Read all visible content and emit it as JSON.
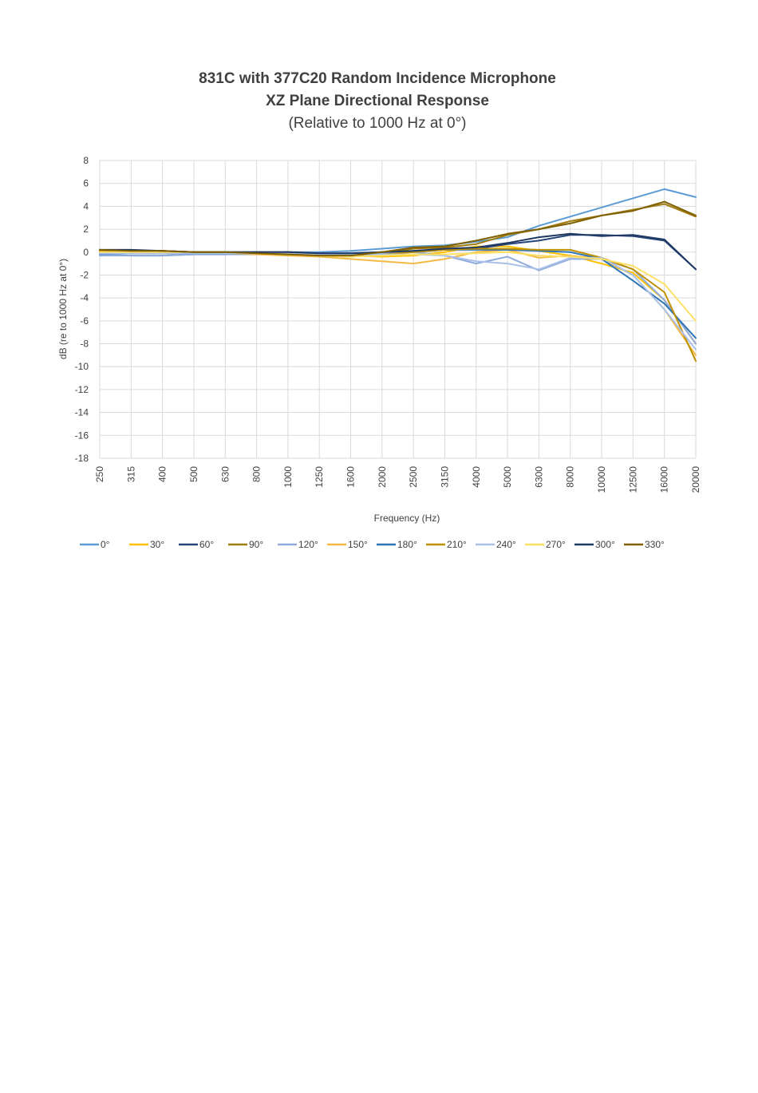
{
  "chart_data": {
    "type": "line",
    "title": "831C with 377C20 Random Incidence Microphone",
    "subtitle": "XZ Plane Directional Response",
    "subtitle2": "(Relative to 1000 Hz at 0°)",
    "xlabel": "Frequency (Hz)",
    "ylabel": "dB (re to 1000 Hz at 0°)",
    "x_scale": "log (third-octave categories)",
    "categories": [
      "250",
      "315",
      "400",
      "500",
      "630",
      "800",
      "1000",
      "1250",
      "1600",
      "2000",
      "2500",
      "3150",
      "4000",
      "5000",
      "6300",
      "8000",
      "10000",
      "12500",
      "16000",
      "20000"
    ],
    "ylim": [
      -18,
      8
    ],
    "yticks": [
      8,
      6,
      4,
      2,
      0,
      -2,
      -4,
      -6,
      -8,
      -10,
      -12,
      -14,
      -16,
      -18
    ],
    "grid": true,
    "legend_position": "bottom",
    "series": [
      {
        "name": "0°",
        "color": "#5b9bd5",
        "values": [
          -0.2,
          -0.3,
          -0.3,
          -0.2,
          -0.2,
          -0.1,
          0.0,
          0.0,
          0.1,
          0.3,
          0.5,
          0.6,
          0.9,
          1.3,
          2.3,
          3.1,
          3.9,
          4.7,
          5.5,
          4.8
        ]
      },
      {
        "name": "30°",
        "color": "#ffc000",
        "values": [
          0.0,
          -0.1,
          -0.1,
          -0.1,
          -0.1,
          -0.1,
          0.0,
          -0.1,
          -0.3,
          -0.4,
          -0.3,
          0.0,
          0.5,
          0.5,
          0.1,
          -0.3,
          -1.0,
          -1.8,
          -4.2,
          -8.0
        ]
      },
      {
        "name": "60°",
        "color": "#264478",
        "values": [
          0.2,
          0.1,
          0.1,
          0.0,
          0.0,
          0.0,
          0.0,
          -0.1,
          -0.2,
          -0.1,
          0.0,
          0.2,
          0.3,
          0.7,
          1.0,
          1.5,
          1.5,
          1.4,
          1.0,
          -1.5
        ]
      },
      {
        "name": "90°",
        "color": "#9e7a0f",
        "values": [
          0.1,
          0.1,
          0.1,
          0.0,
          0.0,
          -0.1,
          -0.2,
          -0.3,
          -0.4,
          -0.1,
          0.3,
          0.4,
          0.7,
          1.5,
          2.0,
          2.7,
          3.2,
          3.7,
          4.2,
          3.1
        ]
      },
      {
        "name": "120°",
        "color": "#8faadc",
        "values": [
          -0.3,
          -0.3,
          -0.3,
          -0.2,
          -0.2,
          -0.2,
          -0.2,
          -0.2,
          -0.2,
          -0.1,
          0.0,
          -0.3,
          -1.0,
          -0.4,
          -1.6,
          -0.6,
          -0.6,
          -1.5,
          -4.2,
          -8.0
        ]
      },
      {
        "name": "150°",
        "color": "#f4b942",
        "values": [
          0.0,
          0.0,
          0.0,
          -0.1,
          -0.1,
          -0.2,
          -0.3,
          -0.4,
          -0.6,
          -0.8,
          -1.0,
          -0.6,
          0.0,
          0.2,
          -0.5,
          -0.3,
          -0.6,
          -2.0,
          -5.0,
          -9.0
        ]
      },
      {
        "name": "180°",
        "color": "#2e75b6",
        "values": [
          -0.1,
          -0.1,
          -0.1,
          -0.1,
          -0.1,
          -0.1,
          -0.1,
          -0.1,
          -0.1,
          0.0,
          0.1,
          0.2,
          0.2,
          0.2,
          0.1,
          0.0,
          -0.6,
          -2.5,
          -4.5,
          -7.5
        ]
      },
      {
        "name": "210°",
        "color": "#bf9000",
        "values": [
          0.1,
          0.1,
          0.1,
          0.0,
          0.0,
          -0.1,
          -0.2,
          -0.3,
          -0.4,
          -0.2,
          0.0,
          0.2,
          0.3,
          0.3,
          0.2,
          0.2,
          -0.5,
          -1.5,
          -3.5,
          -9.5
        ]
      },
      {
        "name": "240°",
        "color": "#a9c1e8",
        "values": [
          -0.1,
          -0.1,
          -0.1,
          -0.1,
          -0.1,
          -0.1,
          -0.1,
          -0.2,
          -0.2,
          -0.2,
          -0.2,
          -0.3,
          -0.8,
          -1.0,
          -1.5,
          -0.5,
          -0.5,
          -2.0,
          -5.0,
          -8.5
        ]
      },
      {
        "name": "270°",
        "color": "#ffe066",
        "values": [
          0.0,
          0.0,
          0.0,
          0.0,
          0.0,
          -0.1,
          -0.2,
          -0.3,
          -0.4,
          -0.3,
          -0.2,
          -0.2,
          -0.1,
          0.0,
          -0.3,
          -0.4,
          -0.6,
          -1.2,
          -2.8,
          -6.0
        ]
      },
      {
        "name": "300°",
        "color": "#1f3864",
        "values": [
          0.2,
          0.2,
          0.1,
          0.0,
          0.0,
          0.0,
          0.0,
          -0.1,
          -0.1,
          0.0,
          0.1,
          0.3,
          0.4,
          0.8,
          1.3,
          1.6,
          1.4,
          1.5,
          1.1,
          -1.5
        ]
      },
      {
        "name": "330°",
        "color": "#7f6000",
        "values": [
          0.2,
          0.1,
          0.1,
          0.0,
          0.0,
          -0.1,
          -0.2,
          -0.3,
          -0.3,
          0.0,
          0.4,
          0.5,
          1.0,
          1.6,
          2.0,
          2.5,
          3.2,
          3.6,
          4.4,
          3.2
        ]
      }
    ]
  }
}
